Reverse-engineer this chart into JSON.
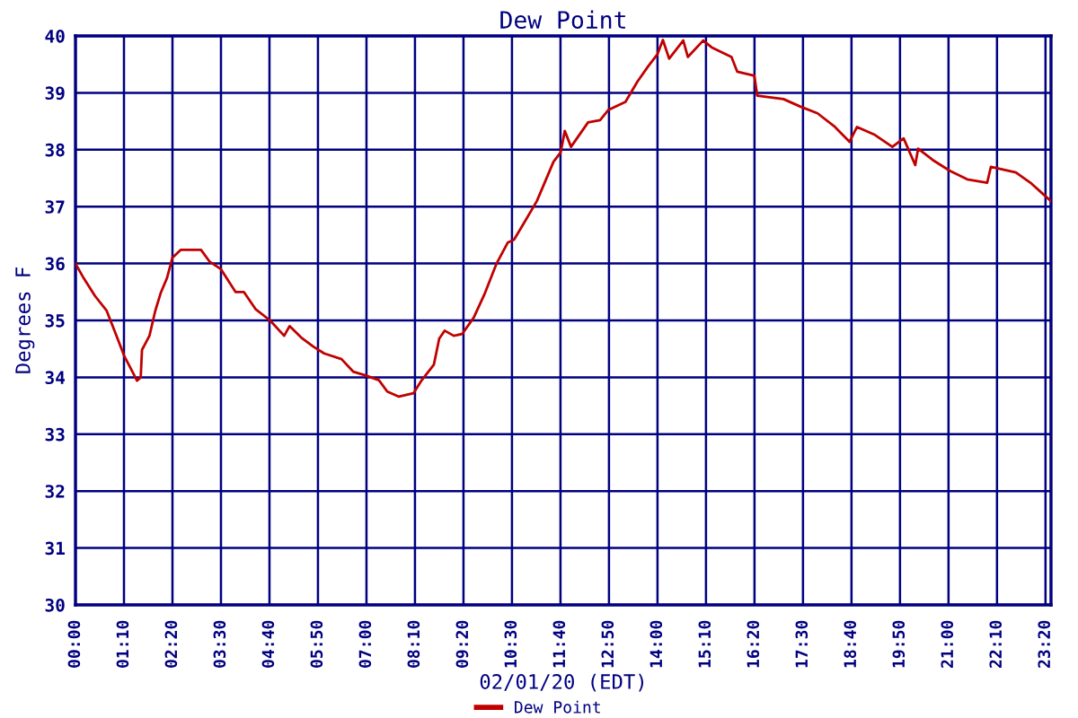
{
  "chart_data": {
    "type": "line",
    "title": "Dew Point",
    "xlabel": "02/01/20 (EDT)",
    "ylabel": "Degrees F",
    "x": [
      0,
      0.2,
      0.47,
      0.75,
      0.95,
      1.17,
      1.37,
      1.48,
      1.57,
      1.6,
      1.78,
      1.92,
      2.05,
      2.2,
      2.33,
      2.53,
      3.02,
      3.23,
      3.5,
      3.85,
      4.05,
      4.33,
      4.68,
      5.02,
      5.15,
      5.43,
      5.72,
      5.98,
      6.4,
      6.68,
      6.95,
      7.3,
      7.5,
      7.78,
      8.13,
      8.33,
      8.62,
      8.75,
      8.88,
      9.1,
      9.3,
      9.58,
      9.85,
      10.13,
      10.4,
      10.55,
      10.82,
      11.1,
      11.5,
      11.67,
      11.77,
      11.92,
      12.33,
      12.62,
      12.82,
      13.23,
      13.52,
      13.78,
      14,
      14.13,
      14.28,
      14.62,
      14.73,
      15.1,
      15.3,
      15.78,
      15.92,
      16.33,
      16.4,
      17.03,
      17.43,
      17.85,
      18.27,
      18.62,
      18.8,
      19.23,
      19.65,
      19.92,
      20.2,
      20.27,
      20.62,
      21.03,
      21.45,
      21.93,
      22.02,
      22.62,
      22.97,
      23.23,
      23.46
    ],
    "series": [
      {
        "name": "Dew Point",
        "color": "#c00000",
        "values": [
          36.0,
          35.74,
          35.43,
          35.17,
          34.8,
          34.38,
          34.1,
          33.94,
          34.0,
          34.48,
          34.73,
          35.17,
          35.48,
          35.74,
          36.1,
          36.24,
          36.24,
          36.03,
          35.9,
          35.5,
          35.5,
          35.2,
          35.0,
          34.73,
          34.9,
          34.7,
          34.54,
          34.42,
          34.32,
          34.1,
          34.04,
          33.95,
          33.75,
          33.66,
          33.72,
          33.95,
          34.22,
          34.68,
          34.82,
          34.73,
          34.76,
          35.05,
          35.48,
          36.0,
          36.37,
          36.42,
          36.75,
          37.1,
          37.79,
          37.95,
          38.33,
          38.05,
          38.48,
          38.52,
          38.7,
          38.84,
          39.2,
          39.47,
          39.68,
          39.93,
          39.6,
          39.92,
          39.63,
          39.92,
          39.8,
          39.63,
          39.37,
          39.3,
          38.95,
          38.89,
          38.76,
          38.64,
          38.4,
          38.14,
          38.4,
          38.26,
          38.05,
          38.2,
          37.73,
          38.02,
          37.82,
          37.63,
          37.48,
          37.42,
          37.7,
          37.6,
          37.42,
          37.25,
          37.1
        ]
      }
    ],
    "xlim": [
      0,
      23.4667
    ],
    "xticks": [
      {
        "value": 0,
        "label": "00:00"
      },
      {
        "value": 1.1667,
        "label": "01:10"
      },
      {
        "value": 2.3333,
        "label": "02:20"
      },
      {
        "value": 3.5,
        "label": "03:30"
      },
      {
        "value": 4.6667,
        "label": "04:40"
      },
      {
        "value": 5.8333,
        "label": "05:50"
      },
      {
        "value": 7,
        "label": "07:00"
      },
      {
        "value": 8.1667,
        "label": "08:10"
      },
      {
        "value": 9.3333,
        "label": "09:20"
      },
      {
        "value": 10.5,
        "label": "10:30"
      },
      {
        "value": 11.6667,
        "label": "11:40"
      },
      {
        "value": 12.8333,
        "label": "12:50"
      },
      {
        "value": 14,
        "label": "14:00"
      },
      {
        "value": 15.1667,
        "label": "15:10"
      },
      {
        "value": 16.3333,
        "label": "16:20"
      },
      {
        "value": 17.5,
        "label": "17:30"
      },
      {
        "value": 18.6667,
        "label": "18:40"
      },
      {
        "value": 19.8333,
        "label": "19:50"
      },
      {
        "value": 21,
        "label": "21:00"
      },
      {
        "value": 22.1667,
        "label": "22:10"
      },
      {
        "value": 23.3333,
        "label": "23:20"
      },
      {
        "value": 23.4667,
        "label": null
      }
    ],
    "ylim": [
      30,
      40
    ],
    "yticks": [
      30,
      31,
      32,
      33,
      34,
      35,
      36,
      37,
      38,
      39,
      40
    ],
    "grid": true,
    "legend": "bottom",
    "marker": "none",
    "line_style": "solid"
  }
}
